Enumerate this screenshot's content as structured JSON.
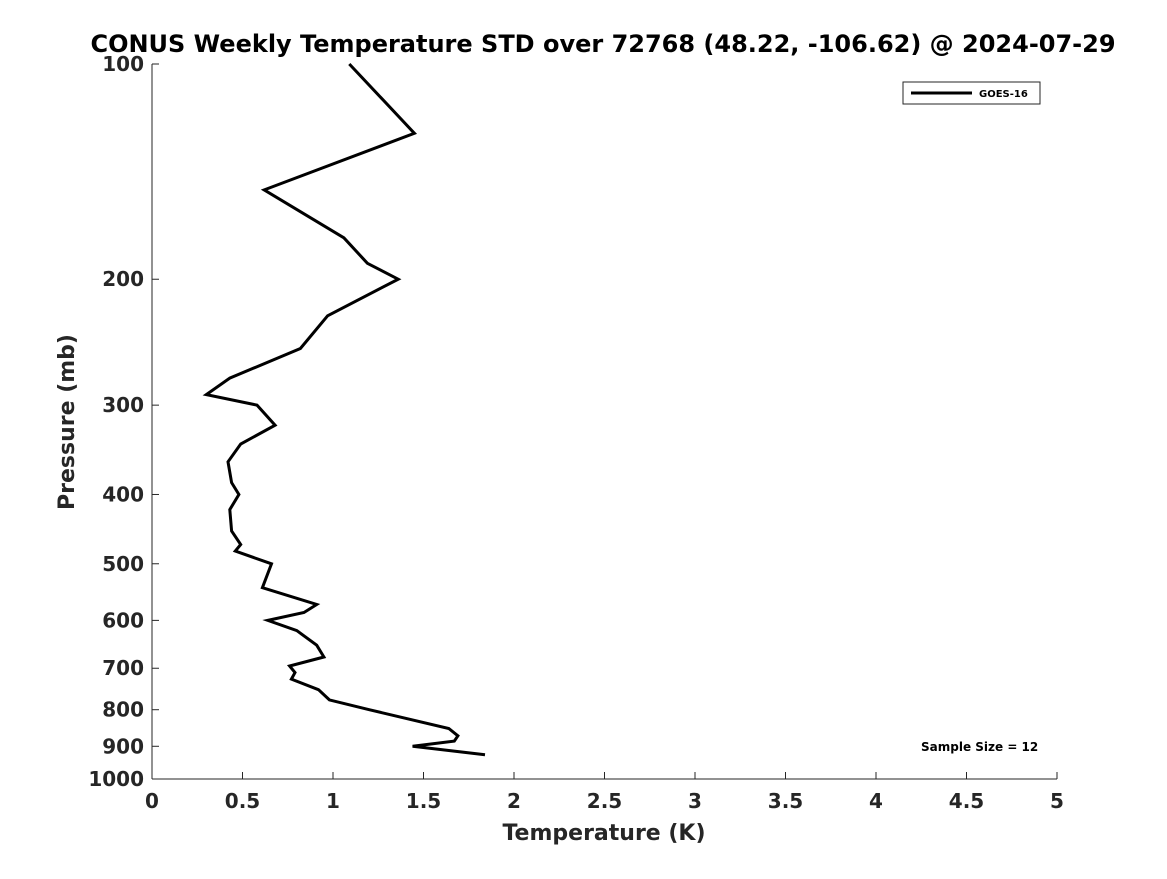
{
  "chart_data": {
    "type": "line",
    "title": "CONUS Weekly Temperature STD over 72768 (48.22, -106.62) @ 2024-07-29",
    "xlabel": "Temperature (K)",
    "ylabel": "Pressure (mb)",
    "xlim": [
      0,
      5
    ],
    "ylim": [
      1000,
      100
    ],
    "yscale": "log",
    "x_ticks": [
      0,
      0.5,
      1,
      1.5,
      2,
      2.5,
      3,
      3.5,
      4,
      4.5,
      5
    ],
    "x_tick_labels": [
      "0",
      "0.5",
      "1",
      "1.5",
      "2",
      "2.5",
      "3",
      "3.5",
      "4",
      "4.5",
      "5"
    ],
    "y_ticks": [
      100,
      200,
      300,
      400,
      500,
      600,
      700,
      800,
      900,
      1000
    ],
    "y_tick_labels": [
      "100",
      "200",
      "300",
      "400",
      "500",
      "600",
      "700",
      "800",
      "900",
      "1000"
    ],
    "grid": false,
    "legend_position": "top-right",
    "series": [
      {
        "name": "GOES-16",
        "color": "#000000",
        "points": [
          {
            "t": 1.09,
            "p": 100
          },
          {
            "t": 1.45,
            "p": 125
          },
          {
            "t": 0.62,
            "p": 150
          },
          {
            "t": 1.06,
            "p": 175
          },
          {
            "t": 1.19,
            "p": 190
          },
          {
            "t": 1.36,
            "p": 200
          },
          {
            "t": 0.97,
            "p": 225
          },
          {
            "t": 0.82,
            "p": 250
          },
          {
            "t": 0.43,
            "p": 275
          },
          {
            "t": 0.3,
            "p": 290
          },
          {
            "t": 0.58,
            "p": 300
          },
          {
            "t": 0.68,
            "p": 320
          },
          {
            "t": 0.49,
            "p": 340
          },
          {
            "t": 0.42,
            "p": 360
          },
          {
            "t": 0.44,
            "p": 385
          },
          {
            "t": 0.48,
            "p": 400
          },
          {
            "t": 0.43,
            "p": 420
          },
          {
            "t": 0.44,
            "p": 450
          },
          {
            "t": 0.49,
            "p": 470
          },
          {
            "t": 0.46,
            "p": 480
          },
          {
            "t": 0.66,
            "p": 500
          },
          {
            "t": 0.61,
            "p": 540
          },
          {
            "t": 0.91,
            "p": 570
          },
          {
            "t": 0.84,
            "p": 585
          },
          {
            "t": 0.64,
            "p": 600
          },
          {
            "t": 0.8,
            "p": 620
          },
          {
            "t": 0.91,
            "p": 650
          },
          {
            "t": 0.95,
            "p": 675
          },
          {
            "t": 0.76,
            "p": 695
          },
          {
            "t": 0.79,
            "p": 710
          },
          {
            "t": 0.77,
            "p": 725
          },
          {
            "t": 0.92,
            "p": 750
          },
          {
            "t": 0.98,
            "p": 775
          },
          {
            "t": 1.2,
            "p": 800
          },
          {
            "t": 1.64,
            "p": 850
          },
          {
            "t": 1.69,
            "p": 870
          },
          {
            "t": 1.67,
            "p": 885
          },
          {
            "t": 1.44,
            "p": 900
          },
          {
            "t": 1.84,
            "p": 925
          }
        ]
      }
    ],
    "legend": {
      "entries": [
        "GOES-16"
      ]
    },
    "annotation": "Sample Size = 12"
  }
}
